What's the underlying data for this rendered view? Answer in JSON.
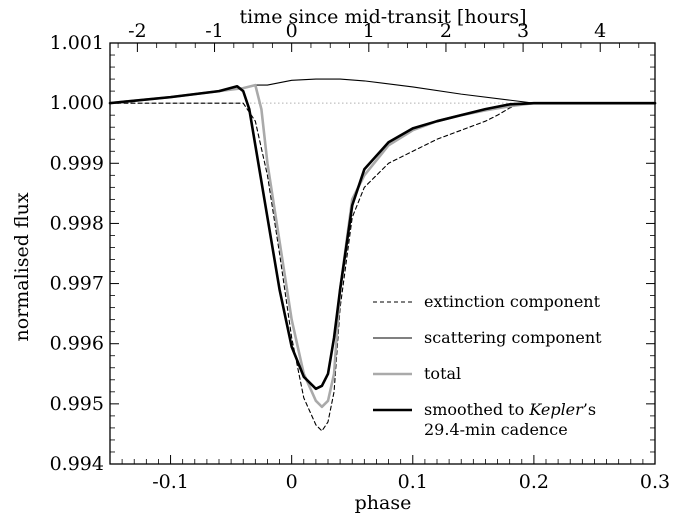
{
  "chart_data": {
    "type": "line",
    "xlabel": "phase",
    "ylabel": "normalised flux",
    "x2label": "time since mid-transit [hours]",
    "xlim": [
      -0.15,
      0.3
    ],
    "ylim": [
      0.994,
      1.001
    ],
    "x_ticks": [
      -0.1,
      0,
      0.1,
      0.2,
      0.3
    ],
    "x_tick_labels": [
      "-0.1",
      "0",
      "0.1",
      "0.2",
      "0.3"
    ],
    "y_ticks": [
      0.994,
      0.995,
      0.996,
      0.997,
      0.998,
      0.999,
      1.0,
      1.001
    ],
    "y_tick_labels": [
      "0.994",
      "0.995",
      "0.996",
      "0.997",
      "0.998",
      "0.999",
      "1.000",
      "1.001"
    ],
    "top_ticks_hours": [
      -2,
      -1,
      0,
      1,
      2,
      3,
      4
    ],
    "top_tick_labels": [
      "-2",
      "-1",
      "0",
      "1",
      "2",
      "3",
      "4"
    ],
    "hours_per_phase": 15.7,
    "reference_line": {
      "y": 1.0,
      "style": "dotted",
      "color": "#b0b0b0"
    },
    "legend": {
      "position": "bottom-right",
      "entries": [
        {
          "label": "extinction component",
          "style": "dashed",
          "color": "#000000"
        },
        {
          "label": "scattering component",
          "style": "thin",
          "color": "#000000"
        },
        {
          "label": "total",
          "style": "thick",
          "color": "#aaaaaa"
        },
        {
          "label_line1_pre": "smoothed to ",
          "label_line1_italic": "Kepler",
          "label_line1_post": "’s",
          "label_line2": "29.4-min cadence",
          "style": "thick",
          "color": "#000000"
        }
      ]
    },
    "series": [
      {
        "name": "extinction component",
        "style": "dashed",
        "color": "#000000",
        "x": [
          -0.15,
          -0.04,
          -0.03,
          -0.02,
          -0.01,
          0.0,
          0.01,
          0.02,
          0.025,
          0.03,
          0.035,
          0.04,
          0.05,
          0.06,
          0.07,
          0.08,
          0.1,
          0.12,
          0.14,
          0.16,
          0.17,
          0.18,
          0.19,
          0.2,
          0.3
        ],
        "y": [
          1.0,
          1.0,
          0.9997,
          0.9988,
          0.9975,
          0.9961,
          0.9951,
          0.99465,
          0.99455,
          0.9947,
          0.9952,
          0.9966,
          0.9981,
          0.9986,
          0.9988,
          0.999,
          0.9992,
          0.9994,
          0.99955,
          0.9997,
          0.9998,
          0.99992,
          1.0,
          1.0,
          1.0
        ]
      },
      {
        "name": "scattering component",
        "style": "thin",
        "color": "#000000",
        "x": [
          -0.15,
          -0.1,
          -0.06,
          -0.04,
          -0.03,
          -0.02,
          0.0,
          0.02,
          0.04,
          0.06,
          0.1,
          0.14,
          0.18,
          0.2,
          0.3
        ],
        "y": [
          1.0,
          1.0001,
          1.0002,
          1.00025,
          1.0003,
          1.0003,
          1.00038,
          1.0004,
          1.0004,
          1.00037,
          1.00027,
          1.00015,
          1.00005,
          1.0,
          1.0
        ]
      },
      {
        "name": "total",
        "style": "thick",
        "color": "#aaaaaa",
        "x": [
          -0.15,
          -0.1,
          -0.06,
          -0.04,
          -0.03,
          -0.025,
          -0.02,
          -0.01,
          0.0,
          0.01,
          0.02,
          0.025,
          0.03,
          0.035,
          0.04,
          0.05,
          0.06,
          0.08,
          0.1,
          0.12,
          0.14,
          0.16,
          0.18,
          0.2,
          0.3
        ],
        "y": [
          1.0,
          1.0001,
          1.0002,
          1.00025,
          1.0003,
          0.9999,
          0.999,
          0.9977,
          0.9964,
          0.9955,
          0.99505,
          0.99495,
          0.99505,
          0.9955,
          0.9969,
          0.9984,
          0.9988,
          0.9993,
          0.99955,
          0.9997,
          0.9998,
          0.99988,
          0.99995,
          1.0,
          1.0
        ]
      },
      {
        "name": "smoothed to Kepler’s 29.4-min cadence",
        "style": "thick",
        "color": "#000000",
        "x": [
          -0.15,
          -0.1,
          -0.06,
          -0.045,
          -0.04,
          -0.035,
          -0.03,
          -0.02,
          -0.01,
          0.0,
          0.01,
          0.02,
          0.025,
          0.03,
          0.035,
          0.04,
          0.05,
          0.06,
          0.08,
          0.1,
          0.12,
          0.14,
          0.16,
          0.18,
          0.2,
          0.3
        ],
        "y": [
          1.0,
          1.0001,
          1.0002,
          1.00028,
          1.0002,
          0.9999,
          0.9993,
          0.9981,
          0.9969,
          0.99595,
          0.99545,
          0.99525,
          0.9953,
          0.9955,
          0.9961,
          0.9969,
          0.9983,
          0.9989,
          0.99935,
          0.99958,
          0.9997,
          0.9998,
          0.9999,
          0.99998,
          1.0,
          1.0
        ]
      }
    ]
  }
}
